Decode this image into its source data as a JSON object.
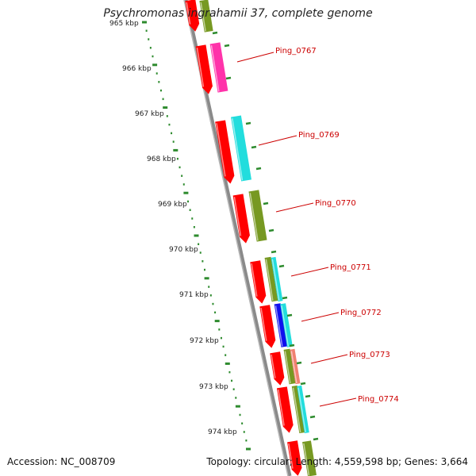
{
  "title": "Psychromonas ingrahamii 37, complete genome",
  "accession": "Accession: NC_008709",
  "summary": "Topology: circular; Length: 4,559,598 bp; Genes: 3,664",
  "ruler": {
    "unit": "kbp",
    "labels": [
      "965 kbp",
      "966 kbp",
      "967 kbp",
      "968 kbp",
      "969 kbp",
      "970 kbp",
      "971 kbp",
      "972 kbp",
      "973 kbp",
      "974 kbp"
    ]
  },
  "gene_labels": [
    "Ping_0767",
    "Ping_0769",
    "Ping_0770",
    "Ping_0771",
    "Ping_0772",
    "Ping_0773",
    "Ping_0774"
  ],
  "colors": {
    "backbone": "#8a8a8a",
    "ruler": "#2e8b2e",
    "label": "#cc0000",
    "cds": "#ff0000",
    "pink": "#ff33aa",
    "cyan": "#22dddd",
    "olive": "#779922",
    "blue": "#1010ee",
    "salmon": "#f08070"
  }
}
